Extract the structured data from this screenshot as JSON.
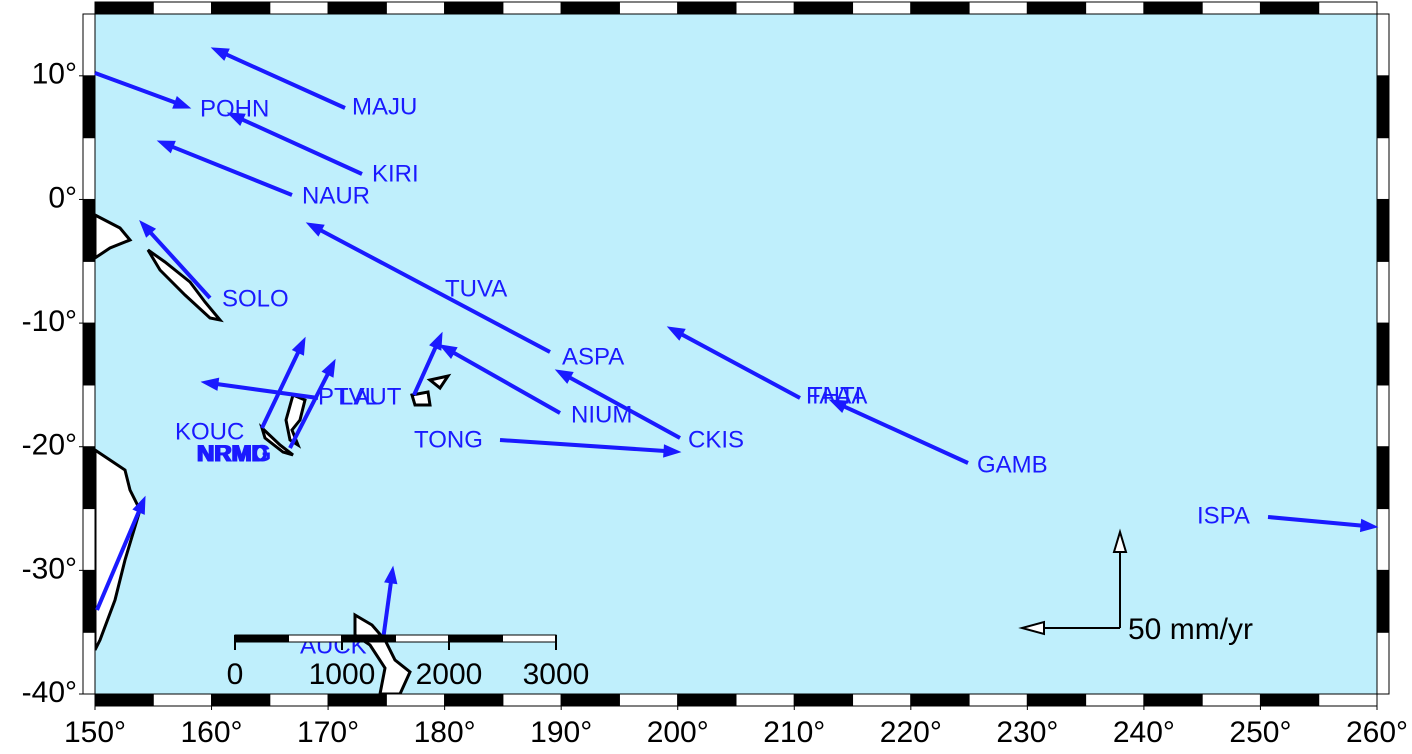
{
  "map": {
    "xlim": [
      150,
      260
    ],
    "ylim": [
      -40,
      15
    ],
    "xticks": [
      {
        "value": 150,
        "label": "150°"
      },
      {
        "value": 160,
        "label": "160°"
      },
      {
        "value": 170,
        "label": "170°"
      },
      {
        "value": 180,
        "label": "180°"
      },
      {
        "value": 190,
        "label": "190°"
      },
      {
        "value": 200,
        "label": "200°"
      },
      {
        "value": 210,
        "label": "210°"
      },
      {
        "value": 220,
        "label": "220°"
      },
      {
        "value": 230,
        "label": "230°"
      },
      {
        "value": 240,
        "label": "240°"
      },
      {
        "value": 250,
        "label": "250°"
      },
      {
        "value": 260,
        "label": "260°"
      }
    ],
    "yticks": [
      {
        "value": 10,
        "label": "10°"
      },
      {
        "value": 0,
        "label": "0°"
      },
      {
        "value": -10,
        "label": "-10°"
      },
      {
        "value": -20,
        "label": "-20°"
      },
      {
        "value": -30,
        "label": "-30°"
      },
      {
        "value": -40,
        "label": "-40°"
      }
    ],
    "stations": [
      "MAJU",
      "POHN",
      "KIRI",
      "NAUR",
      "SOLO",
      "TUVA",
      "ASPA",
      "NIUM",
      "CKIS",
      "PTVL",
      "LAUT",
      "FAAA",
      "THTI",
      "GAMB",
      "ISPA",
      "KOUC",
      "NRMD",
      "NRMG",
      "TONG",
      "AUCK"
    ],
    "scale_bar": {
      "ticks": [
        0,
        1000,
        2000,
        3000
      ]
    },
    "vector_legend": "50 mm/yr"
  }
}
